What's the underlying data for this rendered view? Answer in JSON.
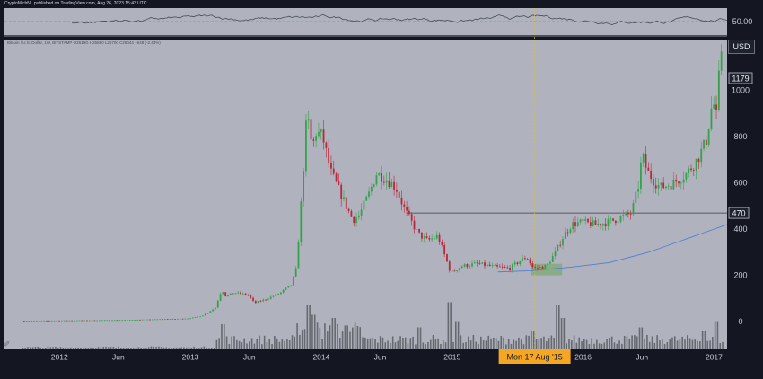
{
  "header": {
    "published_text": "CryptoMichNL published on TradingView.com, Aug 26, 2023 15:43 UTC"
  },
  "legend": {
    "text": "Bitcoin / U.S. Dollar, 1W, BITSTAMP O2619G H26880 L25700 C26044 −648 (-2.43%)"
  },
  "price_axis": {
    "currency_label": "USD",
    "last_price_label": "1179",
    "level_label": "470",
    "level_value": 470
  },
  "crosshair": {
    "date_label": "Mon 17 Aug '15"
  },
  "colors": {
    "background": "#b0b3bd",
    "up_candle": "#33a34a",
    "down_candle": "#b8283a",
    "volume_bar": "#5a5c63",
    "ma_line": "#4d7fd4",
    "crosshair": "#d9c23a",
    "date_badge": "#f5a623",
    "oscillator_line": "#444c55"
  },
  "chart_data": [
    {
      "type": "candlestick",
      "title": "",
      "y_ticks": [
        0,
        200,
        400,
        600,
        800,
        1000
      ],
      "ylim": [
        -120,
        1220
      ],
      "x_tick_labels": [
        "2012",
        "Jun",
        "2013",
        "Jun",
        "2014",
        "Jun",
        "2015",
        "Jun",
        "2016",
        "Jun",
        "2017"
      ],
      "x_tick_positions": [
        2012.0,
        2012.45,
        2013.0,
        2013.45,
        2014.0,
        2014.45,
        2015.0,
        2015.45,
        2016.0,
        2016.45,
        2017.0
      ],
      "xlim": [
        2011.58,
        2017.1
      ],
      "price_path": [
        [
          2011.72,
          4
        ],
        [
          2012.0,
          5
        ],
        [
          2012.5,
          7
        ],
        [
          2012.9,
          12
        ],
        [
          2013.0,
          14
        ],
        [
          2013.1,
          25
        ],
        [
          2013.2,
          60
        ],
        [
          2013.25,
          140
        ],
        [
          2013.28,
          110
        ],
        [
          2013.35,
          125
        ],
        [
          2013.45,
          115
        ],
        [
          2013.5,
          80
        ],
        [
          2013.6,
          100
        ],
        [
          2013.7,
          125
        ],
        [
          2013.78,
          160
        ],
        [
          2013.82,
          230
        ],
        [
          2013.86,
          550
        ],
        [
          2013.9,
          900
        ],
        [
          2013.94,
          750
        ],
        [
          2013.97,
          820
        ],
        [
          2014.02,
          800
        ],
        [
          2014.08,
          650
        ],
        [
          2014.12,
          600
        ],
        [
          2014.2,
          500
        ],
        [
          2014.25,
          440
        ],
        [
          2014.3,
          460
        ],
        [
          2014.38,
          560
        ],
        [
          2014.43,
          640
        ],
        [
          2014.5,
          620
        ],
        [
          2014.58,
          580
        ],
        [
          2014.65,
          480
        ],
        [
          2014.75,
          380
        ],
        [
          2014.82,
          350
        ],
        [
          2014.9,
          370
        ],
        [
          2015.0,
          210
        ],
        [
          2015.08,
          240
        ],
        [
          2015.2,
          250
        ],
        [
          2015.35,
          235
        ],
        [
          2015.45,
          230
        ],
        [
          2015.52,
          260
        ],
        [
          2015.58,
          280
        ],
        [
          2015.63,
          230
        ],
        [
          2015.73,
          240
        ],
        [
          2015.8,
          300
        ],
        [
          2015.85,
          360
        ],
        [
          2015.92,
          420
        ],
        [
          2016.0,
          430
        ],
        [
          2016.1,
          420
        ],
        [
          2016.2,
          430
        ],
        [
          2016.3,
          450
        ],
        [
          2016.38,
          470
        ],
        [
          2016.43,
          580
        ],
        [
          2016.46,
          720
        ],
        [
          2016.5,
          650
        ],
        [
          2016.55,
          610
        ],
        [
          2016.6,
          580
        ],
        [
          2016.7,
          600
        ],
        [
          2016.8,
          640
        ],
        [
          2016.88,
          700
        ],
        [
          2016.95,
          780
        ],
        [
          2017.0,
          960
        ],
        [
          2017.03,
          880
        ],
        [
          2017.06,
          1179
        ]
      ],
      "moving_average": [
        [
          2015.35,
          215
        ],
        [
          2015.6,
          220
        ],
        [
          2015.9,
          235
        ],
        [
          2016.2,
          255
        ],
        [
          2016.5,
          300
        ],
        [
          2016.8,
          360
        ],
        [
          2017.0,
          400
        ],
        [
          2017.1,
          420
        ]
      ],
      "volume_spikes": [
        [
          2013.25,
          0.4
        ],
        [
          2013.9,
          0.7
        ],
        [
          2013.95,
          0.55
        ],
        [
          2014.1,
          0.5
        ],
        [
          2014.2,
          0.38
        ],
        [
          2014.75,
          0.35
        ],
        [
          2014.98,
          0.75
        ],
        [
          2015.03,
          0.45
        ],
        [
          2015.62,
          0.3
        ],
        [
          2015.8,
          0.7
        ],
        [
          2015.84,
          0.5
        ],
        [
          2016.45,
          0.35
        ],
        [
          2016.93,
          0.3
        ],
        [
          2017.02,
          0.45
        ]
      ],
      "highlight_box": {
        "x": [
          2015.6,
          2015.84
        ],
        "y": [
          200,
          250
        ]
      },
      "crosshair_x": 2015.63
    },
    {
      "type": "line",
      "title": "",
      "y_ticks": [
        50.0
      ],
      "y_tick_labels": [
        "50.00"
      ],
      "ylim": [
        20,
        80
      ]
    }
  ]
}
